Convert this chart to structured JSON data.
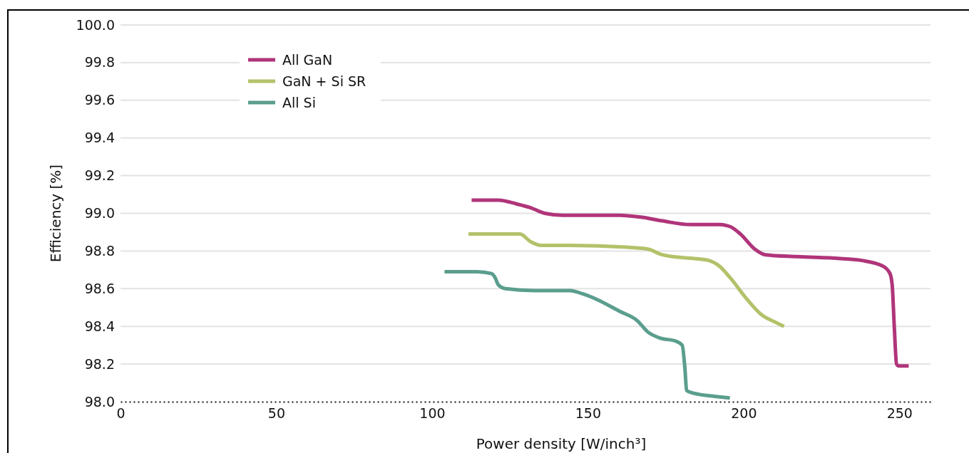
{
  "chart_data": {
    "type": "line",
    "xlabel": "Power density [W/inch³]",
    "ylabel": "Efficiency  [%]",
    "xlim": [
      0,
      260
    ],
    "xticks": [
      0,
      50,
      100,
      150,
      200,
      250
    ],
    "ylim": [
      98,
      100
    ],
    "yticks": [
      {
        "value": 98,
        "label": "98.0"
      },
      {
        "value": 98.2,
        "label": "98.2"
      },
      {
        "value": 98.4,
        "label": "98.4"
      },
      {
        "value": 98.6,
        "label": "98.6"
      },
      {
        "value": 98.8,
        "label": "98.8"
      },
      {
        "value": 99,
        "label": "99.0"
      },
      {
        "value": 99.2,
        "label": "99.2"
      },
      {
        "value": 99.4,
        "label": "99.4"
      },
      {
        "value": 99.6,
        "label": "99.6"
      },
      {
        "value": 99.8,
        "label": "99.8"
      },
      {
        "value": 100,
        "label": "100.0"
      }
    ],
    "grid": "y",
    "legend": "top left",
    "marker": "none",
    "line_style": "solid",
    "series": [
      {
        "name": "All GaN",
        "color": "#b0357a",
        "x": [
          112.7,
          121.3,
          127.1,
          131.6,
          136.2,
          141.9,
          151.1,
          160.2,
          167.0,
          173.9,
          183.0,
          192.2,
          195.6,
          199.0,
          203.6,
          207.0,
          217.3,
          231.0,
          237.9,
          244.7,
          247.0,
          247.7,
          248.4,
          249.1,
          249.8,
          253.0
        ],
        "values": [
          99.07,
          99.07,
          99.05,
          99.03,
          99.0,
          98.99,
          98.99,
          98.99,
          98.98,
          98.96,
          98.94,
          98.94,
          98.93,
          98.89,
          98.81,
          98.78,
          98.77,
          98.76,
          98.75,
          98.72,
          98.68,
          98.62,
          98.39,
          98.2,
          98.19,
          98.19
        ]
      },
      {
        "name": "GaN + Si SR",
        "color": "#b3c26a",
        "x": [
          111.7,
          123.6,
          128.2,
          131.6,
          135.1,
          144.2,
          162.5,
          169.3,
          173.9,
          177.3,
          184.2,
          188.8,
          192.2,
          195.6,
          201.3,
          205.9,
          210.5,
          213.0
        ],
        "values": [
          98.89,
          98.89,
          98.89,
          98.85,
          98.83,
          98.83,
          98.82,
          98.81,
          98.78,
          98.77,
          98.76,
          98.75,
          98.72,
          98.66,
          98.54,
          98.46,
          98.42,
          98.4
        ]
      },
      {
        "name": "All Si",
        "color": "#5b9e8e",
        "x": [
          104.0,
          114.5,
          119.1,
          120.2,
          121.3,
          123.6,
          132.8,
          144.2,
          148.8,
          153.3,
          160.2,
          165.9,
          169.3,
          172.8,
          178.5,
          180.3,
          181.2,
          181.7,
          183.0,
          189.9,
          195.6
        ],
        "values": [
          98.69,
          98.69,
          98.68,
          98.66,
          98.62,
          98.6,
          98.59,
          98.59,
          98.57,
          98.54,
          98.48,
          98.43,
          98.37,
          98.34,
          98.32,
          98.3,
          98.17,
          98.06,
          98.05,
          98.03,
          98.02
        ]
      }
    ]
  }
}
